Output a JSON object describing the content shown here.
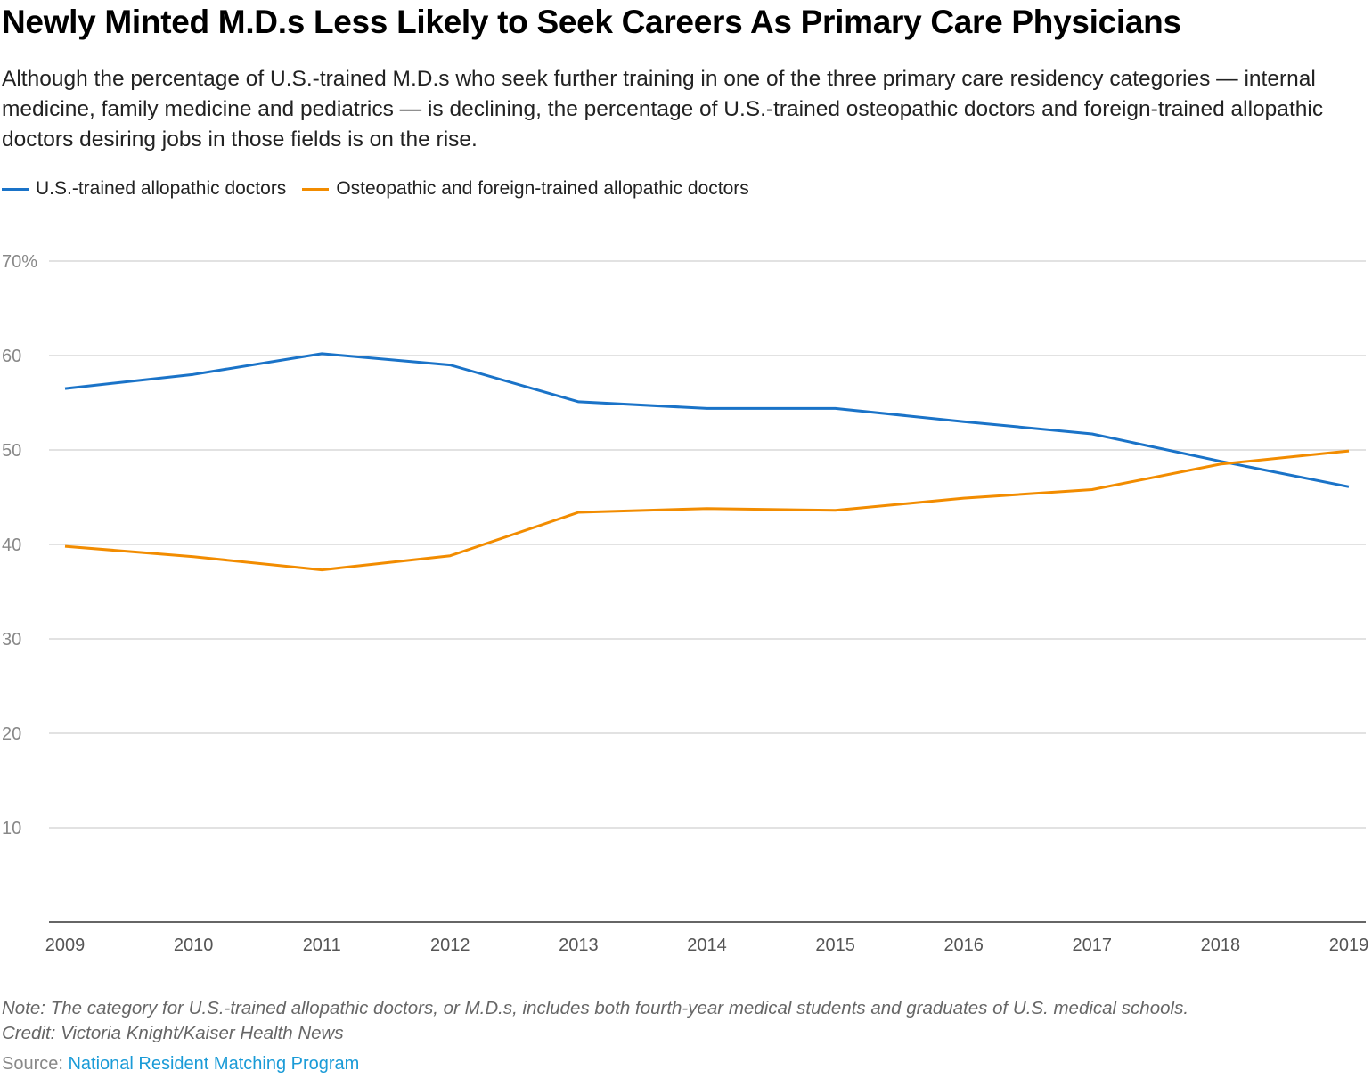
{
  "title": "Newly Minted M.D.s Less Likely to Seek Careers As Primary Care Physicians",
  "subtitle": "Although the percentage of U.S.-trained M.D.s who seek further training in one of the three primary care residency categories — internal medicine, family medicine and pediatrics — is declining, the percentage of U.S.-trained osteopathic doctors and foreign-trained allopathic doctors desiring jobs in those fields is on the rise.",
  "notes": {
    "note": "Note: The category for U.S.-trained allopathic doctors, or M.D.s, includes both fourth-year medical students and graduates of U.S. medical schools.",
    "credit": "Credit: Victoria Knight/Kaiser Health News"
  },
  "source": {
    "label": "Source: ",
    "link_text": "National Resident Matching Program"
  },
  "chart_data": {
    "type": "line",
    "title": "",
    "xlabel": "",
    "ylabel": "",
    "x": [
      "2009",
      "2010",
      "2011",
      "2012",
      "2013",
      "2014",
      "2015",
      "2016",
      "2017",
      "2018",
      "2019"
    ],
    "ylim": [
      0,
      70
    ],
    "yticks": [
      10,
      20,
      30,
      40,
      50,
      60,
      70
    ],
    "ytick_labels": [
      "10",
      "20",
      "30",
      "40",
      "50",
      "60",
      "70%"
    ],
    "grid": true,
    "legend_position": "top-left",
    "series": [
      {
        "name": "U.S.-trained allopathic doctors",
        "color": "#1a73c8",
        "values": [
          56.5,
          58.0,
          60.2,
          59.0,
          55.1,
          54.4,
          54.4,
          53.0,
          51.7,
          48.8,
          46.1
        ]
      },
      {
        "name": "Osteopathic and foreign-trained allopathic doctors",
        "color": "#f28c00",
        "values": [
          39.8,
          38.7,
          37.3,
          38.8,
          43.4,
          43.8,
          43.6,
          44.9,
          45.8,
          48.5,
          49.9
        ]
      }
    ]
  }
}
